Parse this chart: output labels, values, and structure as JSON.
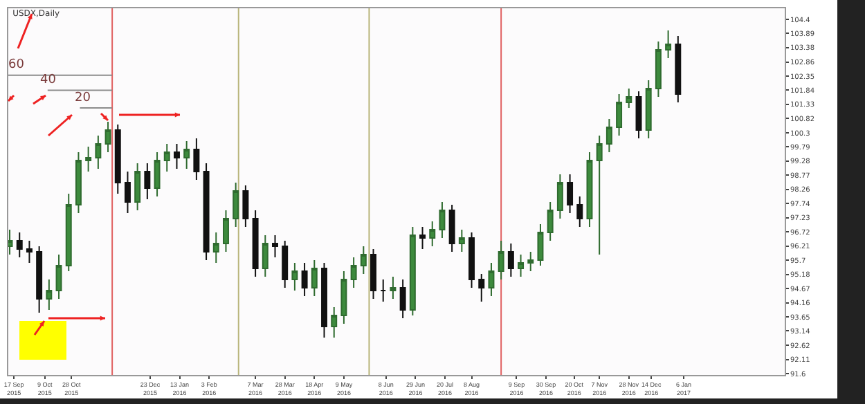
{
  "chart_data": {
    "type": "candlestick",
    "title": "USDX,Daily",
    "x": [
      "2015-09-14",
      "2015-09-21",
      "2015-09-28",
      "2015-10-05",
      "2015-10-12",
      "2015-10-19",
      "2015-10-26",
      "2015-11-02",
      "2015-11-09",
      "2015-11-16",
      "2015-11-23",
      "2015-11-30",
      "2015-12-07",
      "2015-12-14",
      "2015-12-21",
      "2015-12-28",
      "2016-01-04",
      "2016-01-11",
      "2016-01-18",
      "2016-01-25",
      "2016-02-01",
      "2016-02-08",
      "2016-02-15",
      "2016-02-22",
      "2016-02-29",
      "2016-03-07",
      "2016-03-14",
      "2016-03-21",
      "2016-03-28",
      "2016-04-04",
      "2016-04-11",
      "2016-04-18",
      "2016-04-25",
      "2016-05-02",
      "2016-05-09",
      "2016-05-16",
      "2016-05-23",
      "2016-05-30",
      "2016-06-06",
      "2016-06-13",
      "2016-06-20",
      "2016-06-27",
      "2016-07-04",
      "2016-07-11",
      "2016-07-18",
      "2016-07-25",
      "2016-08-01",
      "2016-08-08",
      "2016-08-15",
      "2016-08-22",
      "2016-08-29",
      "2016-09-05",
      "2016-09-12",
      "2016-09-19",
      "2016-09-26",
      "2016-10-03",
      "2016-10-10",
      "2016-10-17",
      "2016-10-24",
      "2016-10-31",
      "2016-11-07",
      "2016-11-14",
      "2016-11-21",
      "2016-11-28",
      "2016-12-05",
      "2016-12-12",
      "2016-12-19",
      "2016-12-26",
      "2017-01-02"
    ],
    "ohlc": [
      [
        96.2,
        96.8,
        95.9,
        96.4
      ],
      [
        96.4,
        96.7,
        95.8,
        96.1
      ],
      [
        96.1,
        96.4,
        95.6,
        96.0
      ],
      [
        96.0,
        96.2,
        93.8,
        94.3
      ],
      [
        94.3,
        95.0,
        93.9,
        94.6
      ],
      [
        94.6,
        95.9,
        94.3,
        95.5
      ],
      [
        95.5,
        98.1,
        95.3,
        97.7
      ],
      [
        97.7,
        99.6,
        97.4,
        99.3
      ],
      [
        99.3,
        99.8,
        98.9,
        99.4
      ],
      [
        99.4,
        100.2,
        99.0,
        99.9
      ],
      [
        99.9,
        100.7,
        99.6,
        100.4
      ],
      [
        100.4,
        100.6,
        98.1,
        98.5
      ],
      [
        98.5,
        98.9,
        97.4,
        97.8
      ],
      [
        97.8,
        99.2,
        97.5,
        98.9
      ],
      [
        98.9,
        99.2,
        97.9,
        98.3
      ],
      [
        98.3,
        99.6,
        98.0,
        99.3
      ],
      [
        99.3,
        99.9,
        98.9,
        99.6
      ],
      [
        99.6,
        99.9,
        99.0,
        99.4
      ],
      [
        99.4,
        100.0,
        99.0,
        99.7
      ],
      [
        99.7,
        100.1,
        98.6,
        98.9
      ],
      [
        98.9,
        99.2,
        95.7,
        96.0
      ],
      [
        96.0,
        96.7,
        95.6,
        96.3
      ],
      [
        96.3,
        97.5,
        96.0,
        97.2
      ],
      [
        97.2,
        98.5,
        96.9,
        98.2
      ],
      [
        98.2,
        98.4,
        96.9,
        97.2
      ],
      [
        97.2,
        97.5,
        95.1,
        95.4
      ],
      [
        95.4,
        96.6,
        95.1,
        96.3
      ],
      [
        96.3,
        96.6,
        95.8,
        96.2
      ],
      [
        96.2,
        96.4,
        94.7,
        95.0
      ],
      [
        95.0,
        95.6,
        94.6,
        95.3
      ],
      [
        95.3,
        95.6,
        94.4,
        94.7
      ],
      [
        94.7,
        95.7,
        94.4,
        95.4
      ],
      [
        95.4,
        95.6,
        92.9,
        93.3
      ],
      [
        93.3,
        94.0,
        92.9,
        93.7
      ],
      [
        93.7,
        95.3,
        93.4,
        95.0
      ],
      [
        95.0,
        95.8,
        94.7,
        95.5
      ],
      [
        95.5,
        96.2,
        95.2,
        95.9
      ],
      [
        95.9,
        96.1,
        94.3,
        94.6
      ],
      [
        94.6,
        95.0,
        94.2,
        94.6
      ],
      [
        94.6,
        95.1,
        94.3,
        94.7
      ],
      [
        94.7,
        95.0,
        93.6,
        93.9
      ],
      [
        93.9,
        96.9,
        93.7,
        96.6
      ],
      [
        96.6,
        96.9,
        96.1,
        96.5
      ],
      [
        96.5,
        97.1,
        96.2,
        96.8
      ],
      [
        96.8,
        97.8,
        96.5,
        97.5
      ],
      [
        97.5,
        97.7,
        96.0,
        96.3
      ],
      [
        96.3,
        96.8,
        96.0,
        96.5
      ],
      [
        96.5,
        96.7,
        94.7,
        95.0
      ],
      [
        95.0,
        95.2,
        94.2,
        94.7
      ],
      [
        94.7,
        95.6,
        94.4,
        95.3
      ],
      [
        95.3,
        96.4,
        95.0,
        96.0
      ],
      [
        96.0,
        96.3,
        95.1,
        95.4
      ],
      [
        95.4,
        95.9,
        95.1,
        95.6
      ],
      [
        95.6,
        96.0,
        95.3,
        95.7
      ],
      [
        95.7,
        97.0,
        95.5,
        96.7
      ],
      [
        96.7,
        97.8,
        96.4,
        97.5
      ],
      [
        97.5,
        98.8,
        97.2,
        98.5
      ],
      [
        98.5,
        98.8,
        97.4,
        97.7
      ],
      [
        97.7,
        98.0,
        96.9,
        97.2
      ],
      [
        97.2,
        99.6,
        96.9,
        99.3
      ],
      [
        99.3,
        100.2,
        95.9,
        99.9
      ],
      [
        99.9,
        100.8,
        99.6,
        100.5
      ],
      [
        100.5,
        101.7,
        100.2,
        101.4
      ],
      [
        101.4,
        101.9,
        101.2,
        101.6
      ],
      [
        101.6,
        101.8,
        100.1,
        100.4
      ],
      [
        100.4,
        102.2,
        100.1,
        101.9
      ],
      [
        101.9,
        103.6,
        101.6,
        103.3
      ],
      [
        103.3,
        104.0,
        103.0,
        103.5
      ],
      [
        103.5,
        103.8,
        101.4,
        101.7
      ]
    ],
    "xlim": [
      "2015-09-13",
      "2017-03-19"
    ],
    "xticks": [
      {
        "value": "2015-09-17",
        "label": "17 Sep 2015"
      },
      {
        "value": "2015-10-09",
        "label": "9 Oct 2015"
      },
      {
        "value": "2015-10-28",
        "label": "28 Oct 2015"
      },
      {
        "value": "2015-12-23",
        "label": "23 Dec 2015"
      },
      {
        "value": "2016-01-13",
        "label": "13 Jan 2016"
      },
      {
        "value": "2016-02-03",
        "label": "3 Feb 2016"
      },
      {
        "value": "2016-03-07",
        "label": "7 Mar 2016"
      },
      {
        "value": "2016-03-28",
        "label": "28 Mar 2016"
      },
      {
        "value": "2016-04-18",
        "label": "18 Apr 2016"
      },
      {
        "value": "2016-05-09",
        "label": "9 May 2016"
      },
      {
        "value": "2016-06-08",
        "label": "8 Jun 2016"
      },
      {
        "value": "2016-06-29",
        "label": "29 Jun 2016"
      },
      {
        "value": "2016-07-20",
        "label": "20 Jul 2016"
      },
      {
        "value": "2016-08-08",
        "label": "8 Aug 2016"
      },
      {
        "value": "2016-09-09",
        "label": "9 Sep 2016"
      },
      {
        "value": "2016-09-30",
        "label": "30 Sep 2016"
      },
      {
        "value": "2016-10-20",
        "label": "20 Oct 2016"
      },
      {
        "value": "2016-11-07",
        "label": "7 Nov 2016"
      },
      {
        "value": "2016-11-28",
        "label": "28 Nov 2016"
      },
      {
        "value": "2016-12-14",
        "label": "14 Dec 2016"
      },
      {
        "value": "2017-01-06",
        "label": "6 Jan 2017"
      }
    ],
    "ylim": [
      91.55,
      104.8
    ],
    "yticks": [
      91.6,
      92.11,
      92.62,
      93.14,
      93.65,
      94.16,
      94.67,
      95.18,
      95.7,
      96.21,
      96.72,
      97.23,
      97.74,
      98.26,
      98.77,
      99.28,
      99.79,
      100.3,
      100.82,
      101.33,
      101.84,
      102.35,
      102.86,
      103.38,
      103.89,
      104.4
    ],
    "grid": false,
    "series": [
      {
        "type": "line",
        "color": "#8c8c8c",
        "x": [
          "2015-09-13",
          "2015-11-26"
        ],
        "values": [
          102.38,
          102.38
        ]
      },
      {
        "type": "line",
        "color": "#8c8c8c",
        "x": [
          "2015-10-11",
          "2015-11-26"
        ],
        "values": [
          101.84,
          101.84
        ]
      },
      {
        "type": "line",
        "color": "#8c8c8c",
        "x": [
          "2015-11-03",
          "2015-11-26"
        ],
        "values": [
          101.2,
          101.2
        ]
      }
    ],
    "annotations": [
      {
        "text": "60",
        "x": "2015-09-19",
        "y": 102.38
      },
      {
        "text": "40",
        "x": "2015-10-12",
        "y": 101.84
      },
      {
        "text": "20",
        "x": "2015-11-05",
        "y": 101.2
      }
    ],
    "ref_lines": [
      {
        "axis": "x",
        "value": "2015-11-26",
        "color": "#e06060"
      },
      {
        "axis": "x",
        "value": "2016-02-24",
        "color": "#b8b47a"
      },
      {
        "axis": "x",
        "value": "2016-05-27",
        "color": "#b8b47a"
      },
      {
        "axis": "x",
        "value": "2016-08-29",
        "color": "#e06060"
      }
    ]
  }
}
